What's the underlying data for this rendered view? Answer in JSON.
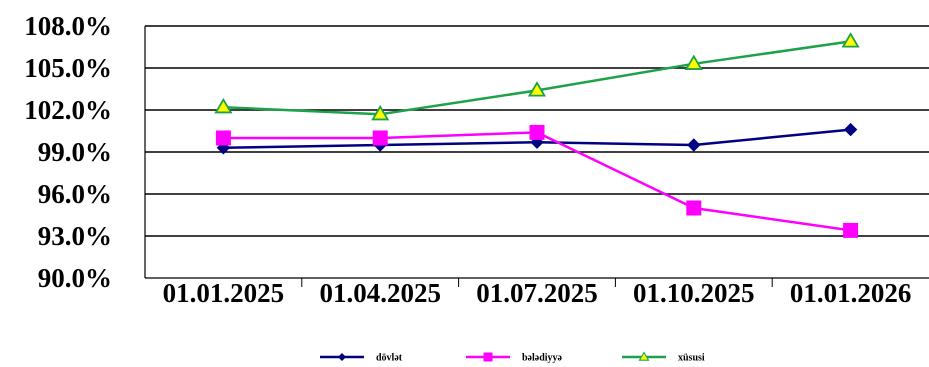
{
  "chart_data": {
    "type": "line",
    "categories": [
      "01.01.2025",
      "01.04.2025",
      "01.07.2025",
      "01.10.2025",
      "01.01.2026"
    ],
    "y_ticks": [
      "90.0%",
      "93.0%",
      "96.0%",
      "99.0%",
      "102.0%",
      "105.0%",
      "108.0%"
    ],
    "ylim": [
      90,
      108
    ],
    "y_unit": "%",
    "grid": true,
    "legend_position": "bottom",
    "series": [
      {
        "name": "dövlət",
        "color": "#000080",
        "marker": "diamond",
        "values": [
          99.3,
          99.5,
          99.7,
          99.5,
          100.6
        ]
      },
      {
        "name": "bələdiyyə",
        "color": "#FF00FF",
        "marker": "square",
        "values": [
          100.0,
          100.0,
          100.4,
          95.0,
          93.4
        ]
      },
      {
        "name": "xüsusi",
        "color": "#1DA24A",
        "marker_fill": "#FFFF00",
        "marker": "triangle",
        "values": [
          102.2,
          101.7,
          103.4,
          105.3,
          106.9
        ]
      }
    ]
  }
}
